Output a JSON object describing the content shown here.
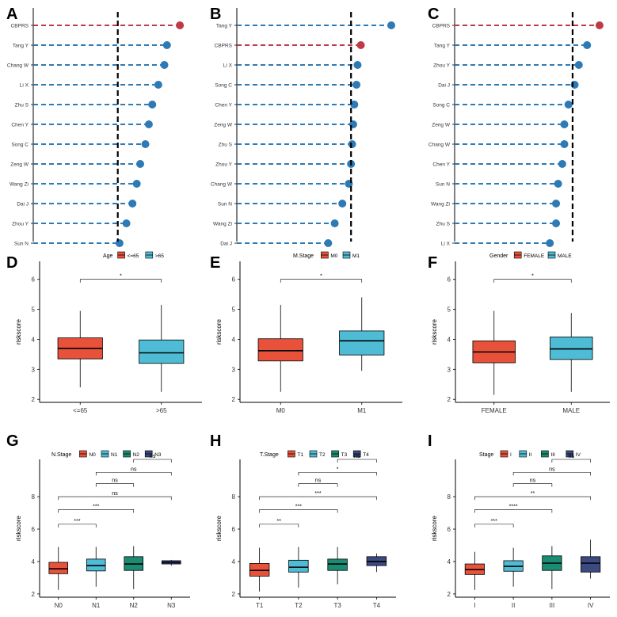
{
  "colors": {
    "cbprs": "#c03a45",
    "dot": "#2e7ab5",
    "box1": "#e8523a",
    "box2": "#4fbcd6",
    "box3": "#1a8c74",
    "box4": "#3b4a80"
  },
  "chart_data": [
    {
      "panel": "A",
      "type": "scatter",
      "categories": [
        "CBPRS",
        "Tang Y",
        "Chang W",
        "Li X",
        "Zhu S",
        "Chen Y",
        "Song C",
        "Zeng W",
        "Wang Zi",
        "Dai J",
        "Zhou Y",
        "Sun N"
      ],
      "values": [
        0.77,
        0.755,
        0.752,
        0.745,
        0.738,
        0.734,
        0.73,
        0.724,
        0.72,
        0.715,
        0.708,
        0.7
      ],
      "highlight": "CBPRS",
      "reference": 0.698,
      "xlim": [
        0.6,
        0.78
      ],
      "title": "",
      "xlabel": "",
      "ylabel": ""
    },
    {
      "panel": "B",
      "type": "scatter",
      "categories": [
        "Tang Y",
        "CBPRS",
        "Li X",
        "Song C",
        "Chen Y",
        "Zeng W",
        "Zhu S",
        "Zhou Y",
        "Chang W",
        "Sun N",
        "Wang Zi",
        "Dai J"
      ],
      "values": [
        0.742,
        0.714,
        0.711,
        0.71,
        0.708,
        0.707,
        0.706,
        0.705,
        0.703,
        0.697,
        0.69,
        0.684
      ],
      "highlight": "CBPRS",
      "reference": 0.705,
      "xlim": [
        0.6,
        0.75
      ],
      "title": "",
      "xlabel": "",
      "ylabel": ""
    },
    {
      "panel": "C",
      "type": "scatter",
      "categories": [
        "CBPRS",
        "Tang Y",
        "Zhou Y",
        "Dai J",
        "Song C",
        "Zeng W",
        "Chang W",
        "Chen Y",
        "Sun N",
        "Wang Zi",
        "Zhu S",
        "Li X"
      ],
      "values": [
        0.77,
        0.764,
        0.76,
        0.758,
        0.755,
        0.753,
        0.753,
        0.752,
        0.75,
        0.749,
        0.749,
        0.746
      ],
      "highlight": "CBPRS",
      "reference": 0.757,
      "xlim": [
        0.7,
        0.775
      ],
      "title": "",
      "xlabel": "",
      "ylabel": ""
    },
    {
      "panel": "D",
      "type": "box",
      "legend_title": "Age",
      "categories": [
        "<=65",
        ">65"
      ],
      "boxes": [
        {
          "min": 2.4,
          "q1": 3.35,
          "median": 3.7,
          "q3": 4.05,
          "max": 4.95
        },
        {
          "min": 2.25,
          "q1": 3.2,
          "median": 3.55,
          "q3": 3.98,
          "max": 5.15
        }
      ],
      "ylabel": "riskscore",
      "ylim": [
        1.9,
        6.6
      ],
      "yticks": [
        "2",
        "3",
        "4",
        "5",
        "6"
      ],
      "comparisons": [
        {
          "from": 0,
          "to": 1,
          "y": 6.0,
          "label": "*"
        }
      ]
    },
    {
      "panel": "E",
      "type": "box",
      "legend_title": "M.Stage",
      "categories": [
        "M0",
        "M1"
      ],
      "boxes": [
        {
          "min": 2.25,
          "q1": 3.28,
          "median": 3.62,
          "q3": 4.02,
          "max": 5.15
        },
        {
          "min": 2.95,
          "q1": 3.48,
          "median": 3.95,
          "q3": 4.28,
          "max": 5.4
        }
      ],
      "ylabel": "riskscore",
      "ylim": [
        1.9,
        6.6
      ],
      "yticks": [
        "2",
        "3",
        "4",
        "5",
        "6"
      ],
      "comparisons": [
        {
          "from": 0,
          "to": 1,
          "y": 6.0,
          "label": "*"
        }
      ]
    },
    {
      "panel": "F",
      "type": "box",
      "legend_title": "Gender",
      "categories": [
        "FEMALE",
        "MALE"
      ],
      "boxes": [
        {
          "min": 2.15,
          "q1": 3.22,
          "median": 3.58,
          "q3": 3.95,
          "max": 4.95
        },
        {
          "min": 2.25,
          "q1": 3.33,
          "median": 3.68,
          "q3": 4.08,
          "max": 4.88
        }
      ],
      "ylabel": "riskscore",
      "ylim": [
        1.9,
        6.6
      ],
      "yticks": [
        "2",
        "3",
        "4",
        "5",
        "6"
      ],
      "comparisons": [
        {
          "from": 0,
          "to": 1,
          "y": 6.0,
          "label": "*"
        }
      ]
    },
    {
      "panel": "G",
      "type": "box",
      "legend_title": "N.Stage",
      "categories": [
        "N0",
        "N1",
        "N2",
        "N3"
      ],
      "boxes": [
        {
          "min": 2.25,
          "q1": 3.25,
          "median": 3.55,
          "q3": 3.95,
          "max": 4.9
        },
        {
          "min": 2.45,
          "q1": 3.42,
          "median": 3.75,
          "q3": 4.15,
          "max": 4.9
        },
        {
          "min": 2.3,
          "q1": 3.45,
          "median": 3.85,
          "q3": 4.3,
          "max": 4.95
        },
        {
          "min": 3.75,
          "q1": 3.85,
          "median": 3.95,
          "q3": 4.05,
          "max": 4.1
        }
      ],
      "ylabel": "riskscore",
      "ylim": [
        1.8,
        10.3
      ],
      "yticks": [
        "2",
        "4",
        "6",
        "8"
      ],
      "comparisons": [
        {
          "from": 0,
          "to": 1,
          "y": 6.3,
          "label": "***"
        },
        {
          "from": 0,
          "to": 2,
          "y": 7.2,
          "label": "***"
        },
        {
          "from": 0,
          "to": 3,
          "y": 8.0,
          "label": "ns"
        },
        {
          "from": 1,
          "to": 2,
          "y": 8.8,
          "label": "ns"
        },
        {
          "from": 1,
          "to": 3,
          "y": 9.5,
          "label": "ns"
        },
        {
          "from": 2,
          "to": 3,
          "y": 10.3,
          "label": "ns"
        }
      ]
    },
    {
      "panel": "H",
      "type": "box",
      "legend_title": "T.Stage",
      "categories": [
        "T1",
        "T2",
        "T3",
        "T4"
      ],
      "boxes": [
        {
          "min": 2.15,
          "q1": 3.1,
          "median": 3.45,
          "q3": 3.88,
          "max": 4.85
        },
        {
          "min": 2.4,
          "q1": 3.35,
          "median": 3.65,
          "q3": 4.08,
          "max": 4.9
        },
        {
          "min": 2.6,
          "q1": 3.45,
          "median": 3.85,
          "q3": 4.15,
          "max": 4.9
        },
        {
          "min": 3.35,
          "q1": 3.75,
          "median": 4.0,
          "q3": 4.3,
          "max": 4.5
        }
      ],
      "ylabel": "riskscore",
      "ylim": [
        1.8,
        10.3
      ],
      "yticks": [
        "2",
        "4",
        "6",
        "8"
      ],
      "comparisons": [
        {
          "from": 0,
          "to": 1,
          "y": 6.3,
          "label": "**"
        },
        {
          "from": 0,
          "to": 2,
          "y": 7.2,
          "label": "***"
        },
        {
          "from": 0,
          "to": 3,
          "y": 8.0,
          "label": "***"
        },
        {
          "from": 1,
          "to": 2,
          "y": 8.8,
          "label": "ns"
        },
        {
          "from": 1,
          "to": 3,
          "y": 9.5,
          "label": "*"
        },
        {
          "from": 2,
          "to": 3,
          "y": 10.3,
          "label": "ns"
        }
      ]
    },
    {
      "panel": "I",
      "type": "box",
      "legend_title": "Stage",
      "categories": [
        "I",
        "II",
        "III",
        "IV"
      ],
      "boxes": [
        {
          "min": 2.25,
          "q1": 3.2,
          "median": 3.5,
          "q3": 3.85,
          "max": 4.6
        },
        {
          "min": 2.45,
          "q1": 3.4,
          "median": 3.7,
          "q3": 4.05,
          "max": 4.85
        },
        {
          "min": 2.3,
          "q1": 3.45,
          "median": 3.9,
          "q3": 4.35,
          "max": 4.95
        },
        {
          "min": 2.95,
          "q1": 3.35,
          "median": 3.9,
          "q3": 4.3,
          "max": 5.35
        }
      ],
      "ylabel": "riskscore",
      "ylim": [
        1.8,
        10.3
      ],
      "yticks": [
        "2",
        "4",
        "6",
        "8"
      ],
      "comparisons": [
        {
          "from": 0,
          "to": 1,
          "y": 6.3,
          "label": "***"
        },
        {
          "from": 0,
          "to": 2,
          "y": 7.2,
          "label": "****"
        },
        {
          "from": 0,
          "to": 3,
          "y": 8.0,
          "label": "**"
        },
        {
          "from": 1,
          "to": 2,
          "y": 8.8,
          "label": "ns"
        },
        {
          "from": 1,
          "to": 3,
          "y": 9.5,
          "label": "ns"
        },
        {
          "from": 2,
          "to": 3,
          "y": 10.3,
          "label": "ns"
        }
      ]
    }
  ]
}
